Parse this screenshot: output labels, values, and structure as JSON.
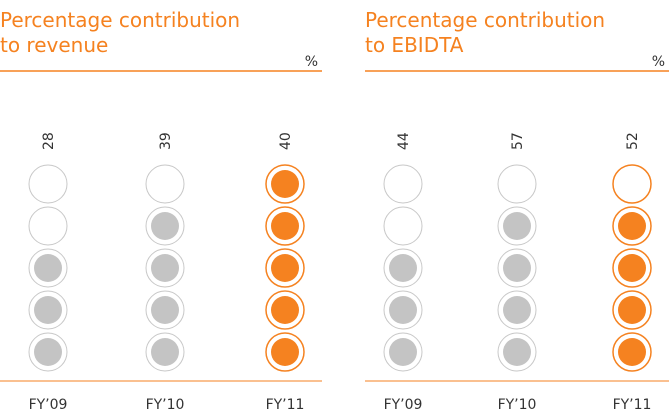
{
  "chart_data": [
    {
      "type": "pictogram",
      "title": "Percentage contribution to revenue",
      "unit": "%",
      "categories": [
        "FY’09",
        "FY’10",
        "FY’11"
      ],
      "values": [
        28,
        39,
        40
      ],
      "filled": [
        3,
        4,
        5
      ],
      "dots": 5,
      "colors": [
        "#c4c4c4",
        "#c4c4c4",
        "#f58220"
      ]
    },
    {
      "type": "pictogram",
      "title": "Percentage contribution to EBIDTA",
      "unit": "%",
      "categories": [
        "FY’09",
        "FY’10",
        "FY’11"
      ],
      "values": [
        44,
        57,
        52
      ],
      "filled": [
        3,
        4,
        4
      ],
      "dots": 5,
      "colors": [
        "#c4c4c4",
        "#c4c4c4",
        "#f58220"
      ]
    }
  ]
}
